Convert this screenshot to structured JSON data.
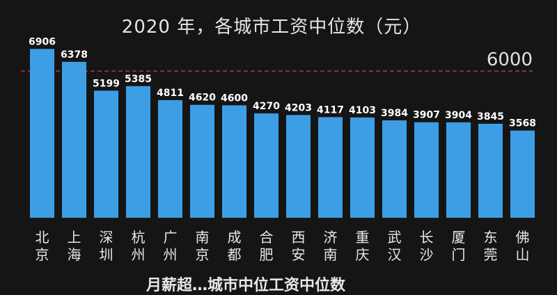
{
  "chart_data": {
    "type": "bar",
    "title": "2020 年，各城市工资中位数（元）",
    "categories": [
      "北京",
      "上海",
      "深圳",
      "杭州",
      "广州",
      "南京",
      "成都",
      "合肥",
      "西安",
      "济南",
      "重庆",
      "武汉",
      "长沙",
      "厦门",
      "东莞",
      "佛山"
    ],
    "values": [
      6906,
      6378,
      5199,
      5385,
      4811,
      4620,
      4600,
      4270,
      4203,
      4117,
      4103,
      3984,
      3907,
      3904,
      3845,
      3568
    ],
    "reference_line": {
      "value": 6000,
      "label": "6000",
      "color": "#b23a3a",
      "style": "dashed"
    },
    "bar_color": "#3d9ee6",
    "label_color": "#ffffff",
    "category_color": "#e8e8e8",
    "background": "#151515",
    "ylim": [
      0,
      7200
    ],
    "grid": false,
    "legend": "none"
  },
  "subcaption": "月薪超…城市中位工资中位数"
}
